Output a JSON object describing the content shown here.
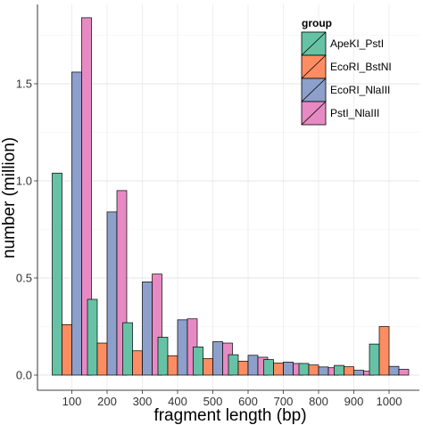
{
  "chart_data": {
    "type": "bar",
    "xlabel": "fragment length (bp)",
    "ylabel": "number (million)",
    "categories": [
      "100",
      "200",
      "300",
      "400",
      "500",
      "600",
      "700",
      "800",
      "900",
      "1000"
    ],
    "ylim": [
      0,
      1.85
    ],
    "yticks": [
      "0.0",
      "0.5",
      "1.0",
      "1.5"
    ],
    "grid": "on",
    "legend": {
      "title": "group",
      "position": "top-right"
    },
    "series": [
      {
        "name": "ApeKI_PstI",
        "color": "#66c2a5",
        "values": [
          1.04,
          0.39,
          0.27,
          0.195,
          0.145,
          0.105,
          0.08,
          0.06,
          0.05,
          0.16
        ]
      },
      {
        "name": "EcoRI_BstNI",
        "color": "#fc8d62",
        "values": [
          0.26,
          0.165,
          0.125,
          0.1,
          0.085,
          0.072,
          0.062,
          0.052,
          0.043,
          0.25
        ]
      },
      {
        "name": "EcoRI_NlaIII",
        "color": "#8da0cb",
        "values": [
          1.56,
          0.84,
          0.48,
          0.285,
          0.172,
          0.102,
          0.067,
          0.042,
          0.025,
          0.045
        ]
      },
      {
        "name": "PstI_NlaIII",
        "color": "#e78ac3",
        "values": [
          1.84,
          0.95,
          0.52,
          0.29,
          0.165,
          0.092,
          0.06,
          0.038,
          0.02,
          0.03
        ]
      }
    ]
  }
}
